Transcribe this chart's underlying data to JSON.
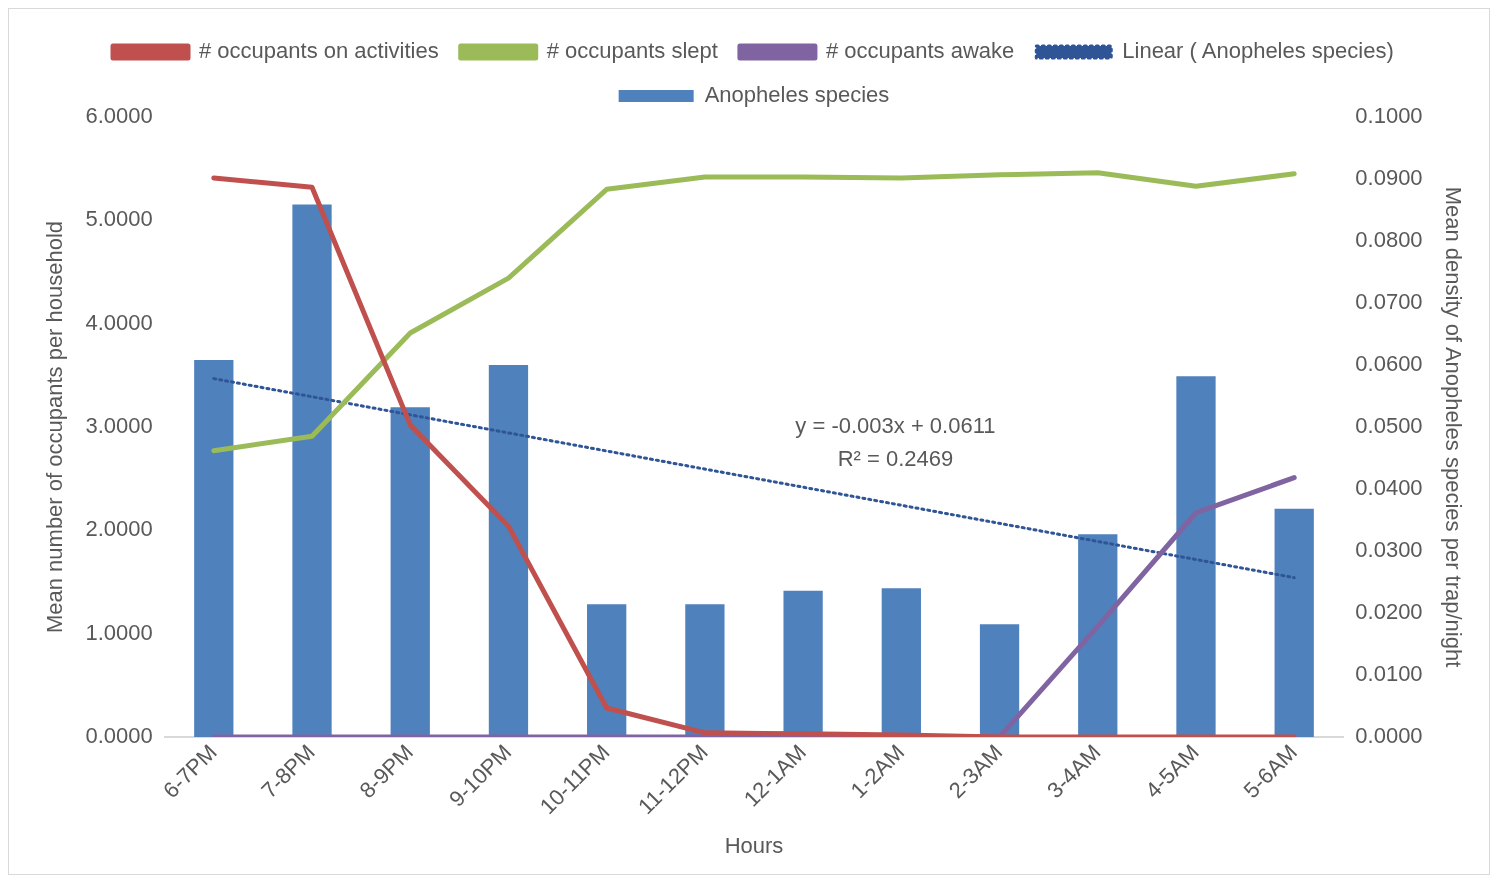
{
  "chart_data": {
    "type": "bar",
    "xlabel": "Hours",
    "ylabel": "Mean number of occupants per household",
    "y2label": "Mean density of Anopheles species per trap/night",
    "categories": [
      "6-7PM",
      "7-8PM",
      "8-9PM",
      "9-10PM",
      "10-11PM",
      "11-12PM",
      "12-1AM",
      "1-2AM",
      "2-3AM",
      "3-4AM",
      "4-5AM",
      "5-6AM"
    ],
    "series": [
      {
        "name": "Anopheles species",
        "axis": "y2",
        "color": "#4f81bd",
        "values": [
          0.0608,
          0.0859,
          0.0532,
          0.06,
          0.0214,
          0.0214,
          0.0236,
          0.024,
          0.0182,
          0.0327,
          0.0582,
          0.0368
        ]
      },
      {
        "name": "# occupants on activities",
        "type": "line",
        "color": "#c0504d",
        "values": [
          5.41,
          5.32,
          3.02,
          2.04,
          0.28,
          0.04,
          0.03,
          0.02,
          0,
          0,
          0,
          0
        ]
      },
      {
        "name": "# occupants slept",
        "type": "line",
        "color": "#9bbb59",
        "values": [
          2.77,
          2.91,
          3.91,
          4.44,
          5.3,
          5.42,
          5.42,
          5.41,
          5.44,
          5.46,
          5.33,
          5.45
        ]
      },
      {
        "name": "# occupants awake",
        "type": "line",
        "color": "#8064a2",
        "values": [
          0,
          0,
          0,
          0,
          0,
          0,
          0,
          0,
          0,
          1.07,
          2.17,
          2.51
        ]
      },
      {
        "name": "Linear ( Anopheles species)",
        "type": "line",
        "axis": "y2",
        "line_style": "dotted",
        "color": "#2f5597",
        "values": [
          0.0578,
          null,
          null,
          null,
          null,
          null,
          null,
          null,
          null,
          null,
          null,
          0.0257
        ]
      }
    ],
    "ylim": [
      0,
      6
    ],
    "yticks": [
      {
        "value": 0,
        "label": "0.0000"
      },
      {
        "value": 1,
        "label": "1.0000"
      },
      {
        "value": 2,
        "label": "2.0000"
      },
      {
        "value": 3,
        "label": "3.0000"
      },
      {
        "value": 4,
        "label": "4.0000"
      },
      {
        "value": 5,
        "label": "5.0000"
      },
      {
        "value": 6,
        "label": "6.0000"
      }
    ],
    "y2lim": [
      0,
      0.1
    ],
    "y2ticks": [
      {
        "value": 0,
        "label": "0.0000"
      },
      {
        "value": 0.01,
        "label": "0.0100"
      },
      {
        "value": 0.02,
        "label": "0.0200"
      },
      {
        "value": 0.03,
        "label": "0.0300"
      },
      {
        "value": 0.04,
        "label": "0.0400"
      },
      {
        "value": 0.05,
        "label": "0.0500"
      },
      {
        "value": 0.06,
        "label": "0.0600"
      },
      {
        "value": 0.07,
        "label": "0.0700"
      },
      {
        "value": 0.08,
        "label": "0.0800"
      },
      {
        "value": 0.09,
        "label": "0.0900"
      },
      {
        "value": 0.1,
        "label": "0.1000"
      }
    ],
    "annotations": [
      "y = -0.003x + 0.0611",
      "R² = 0.2469"
    ],
    "grid": false,
    "legend": "top",
    "marker": "none"
  }
}
